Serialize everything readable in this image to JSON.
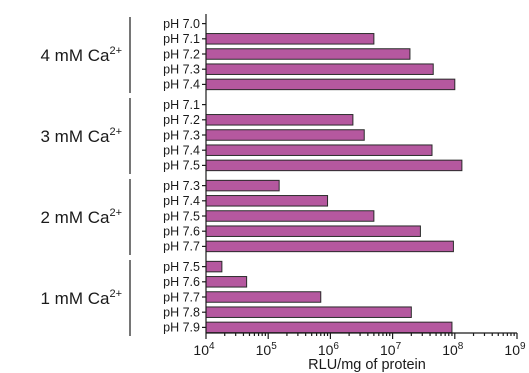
{
  "chart_data": {
    "type": "bar",
    "orientation": "horizontal",
    "x_scale": "log",
    "xlim": [
      10000,
      1000000000
    ],
    "xlabel": "RLU/mg of protein",
    "x_ticks": [
      {
        "base": "10",
        "exp": "4"
      },
      {
        "base": "10",
        "exp": "5"
      },
      {
        "base": "10",
        "exp": "6"
      },
      {
        "base": "10",
        "exp": "7"
      },
      {
        "base": "10",
        "exp": "8"
      },
      {
        "base": "10",
        "exp": "9"
      }
    ],
    "bar_color": "#b5589f",
    "groups": [
      {
        "label": "4 mM Ca",
        "label_sup": "2+",
        "bars": [
          {
            "category": "pH 7.0",
            "value": null
          },
          {
            "category": "pH 7.1",
            "value": 5000000
          },
          {
            "category": "pH 7.2",
            "value": 19000000
          },
          {
            "category": "pH 7.3",
            "value": 45000000
          },
          {
            "category": "pH 7.4",
            "value": 100000000
          }
        ]
      },
      {
        "label": "3 mM Ca",
        "label_sup": "2+",
        "bars": [
          {
            "category": "pH 7.1",
            "value": null
          },
          {
            "category": "pH 7.2",
            "value": 2300000
          },
          {
            "category": "pH 7.3",
            "value": 3500000
          },
          {
            "category": "pH 7.4",
            "value": 43000000
          },
          {
            "category": "pH 7.5",
            "value": 130000000
          }
        ]
      },
      {
        "label": "2 mM Ca",
        "label_sup": "2+",
        "bars": [
          {
            "category": "pH 7.3",
            "value": 150000
          },
          {
            "category": "pH 7.4",
            "value": 900000
          },
          {
            "category": "pH 7.5",
            "value": 5000000
          },
          {
            "category": "pH 7.6",
            "value": 28000000
          },
          {
            "category": "pH 7.7",
            "value": 95000000
          }
        ]
      },
      {
        "label": "1 mM Ca",
        "label_sup": "2+",
        "bars": [
          {
            "category": "pH 7.5",
            "value": 18000
          },
          {
            "category": "pH 7.6",
            "value": 45000
          },
          {
            "category": "pH 7.7",
            "value": 700000
          },
          {
            "category": "pH 7.8",
            "value": 20000000
          },
          {
            "category": "pH 7.9",
            "value": 90000000
          }
        ]
      }
    ]
  }
}
